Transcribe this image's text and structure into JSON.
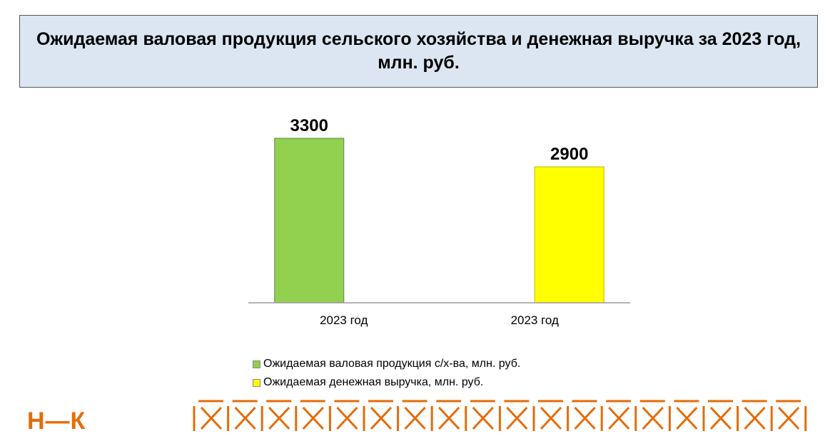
{
  "title": "Ожидаемая валовая продукция сельского хозяйства и денежная выручка за 2023 год, млн. руб.",
  "chart_data": {
    "type": "bar",
    "title": "Ожидаемая валовая продукция сельского хозяйства и денежная выручка за 2023 год, млн. руб.",
    "categories": [
      "2023 год",
      "2023 год"
    ],
    "series": [
      {
        "name": "Ожидаемая валовая продукция с/х-ва, млн. руб.",
        "values": [
          3300,
          null
        ],
        "color": "#92d050"
      },
      {
        "name": "Ожидаемая денежная выручка, млн. руб.",
        "values": [
          null,
          2900
        ],
        "color": "#ffff00"
      }
    ],
    "data_labels": [
      "3300",
      "2900"
    ],
    "ylim": [
      1000,
      3500
    ],
    "grid": false,
    "legend": "bottom"
  },
  "logo": {
    "text": "Н—К",
    "color": "#e46c0a"
  },
  "pattern_color": "#e46c0a"
}
